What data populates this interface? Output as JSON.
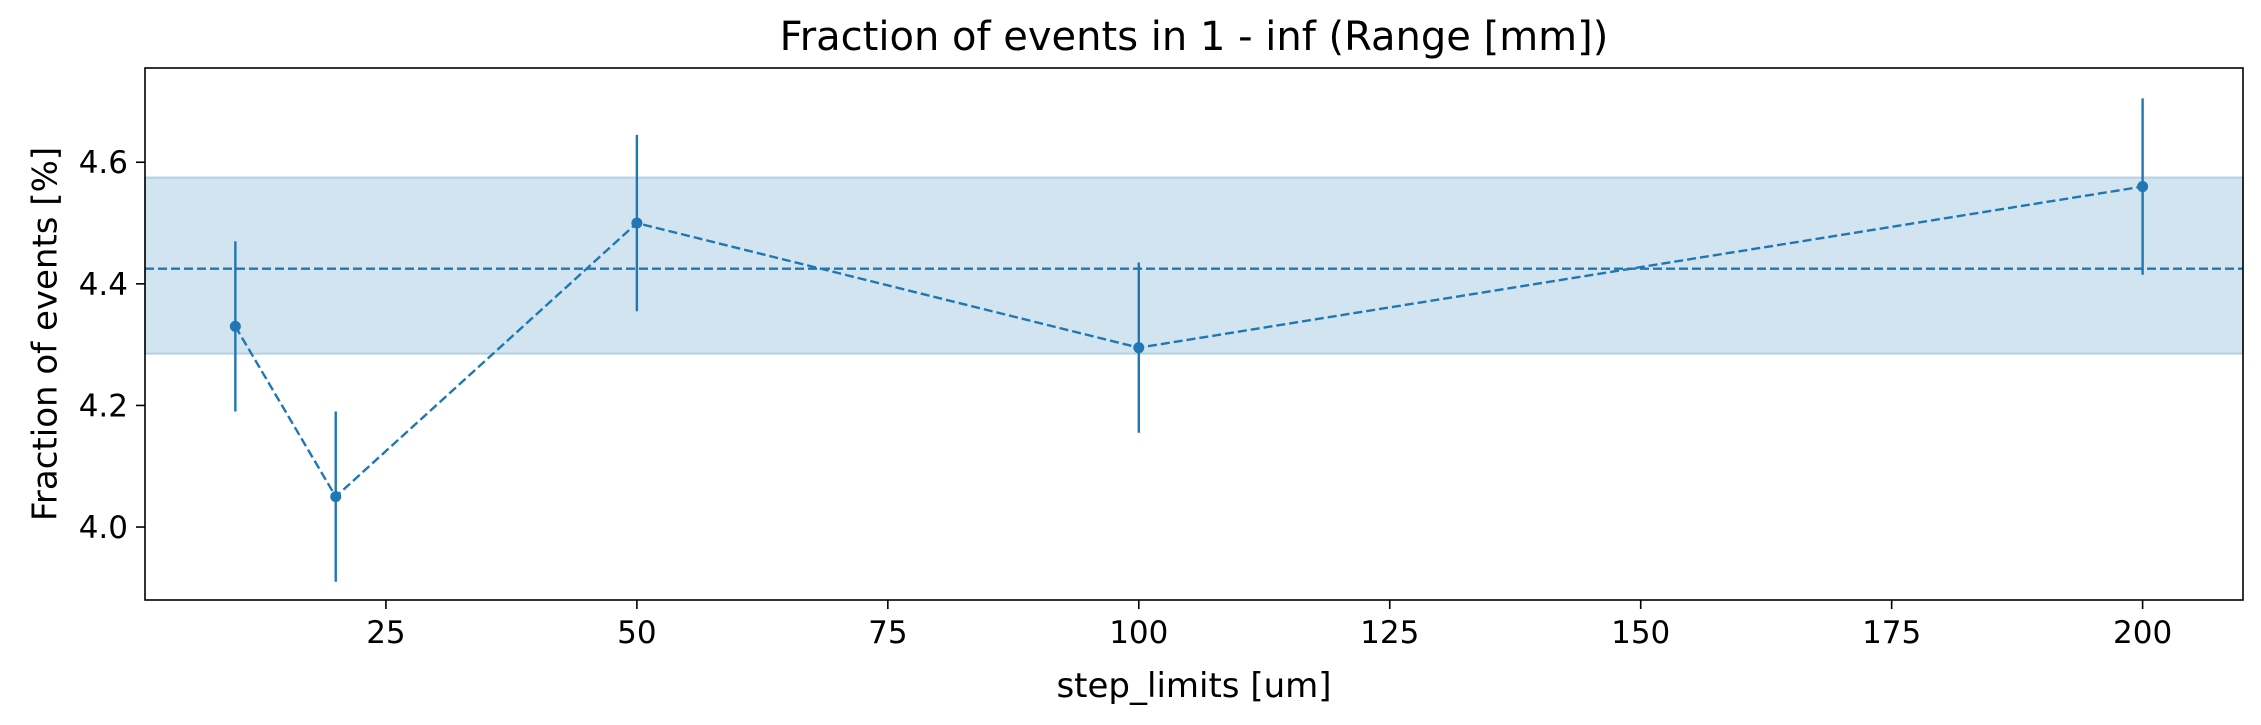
{
  "chart_data": {
    "type": "line",
    "title": "Fraction of events in 1 - inf (Range [mm])",
    "xlabel": "step_limits [um]",
    "ylabel": "Fraction of events [%]",
    "xlim": [
      1,
      210
    ],
    "ylim": [
      3.88,
      4.755
    ],
    "xticks": [
      25,
      50,
      75,
      100,
      125,
      150,
      175,
      200
    ],
    "yticks": [
      4.0,
      4.2,
      4.4,
      4.6
    ],
    "grid": false,
    "series": [
      {
        "color": "#1f77b4",
        "x": [
          10,
          20,
          50,
          100,
          200
        ],
        "y": [
          4.33,
          4.05,
          4.5,
          4.295,
          4.56
        ],
        "err": [
          0.14,
          0.14,
          0.145,
          0.14,
          0.145
        ]
      }
    ],
    "mean": 4.425,
    "band": [
      4.285,
      4.575
    ],
    "band_color": "#1f77b4"
  }
}
